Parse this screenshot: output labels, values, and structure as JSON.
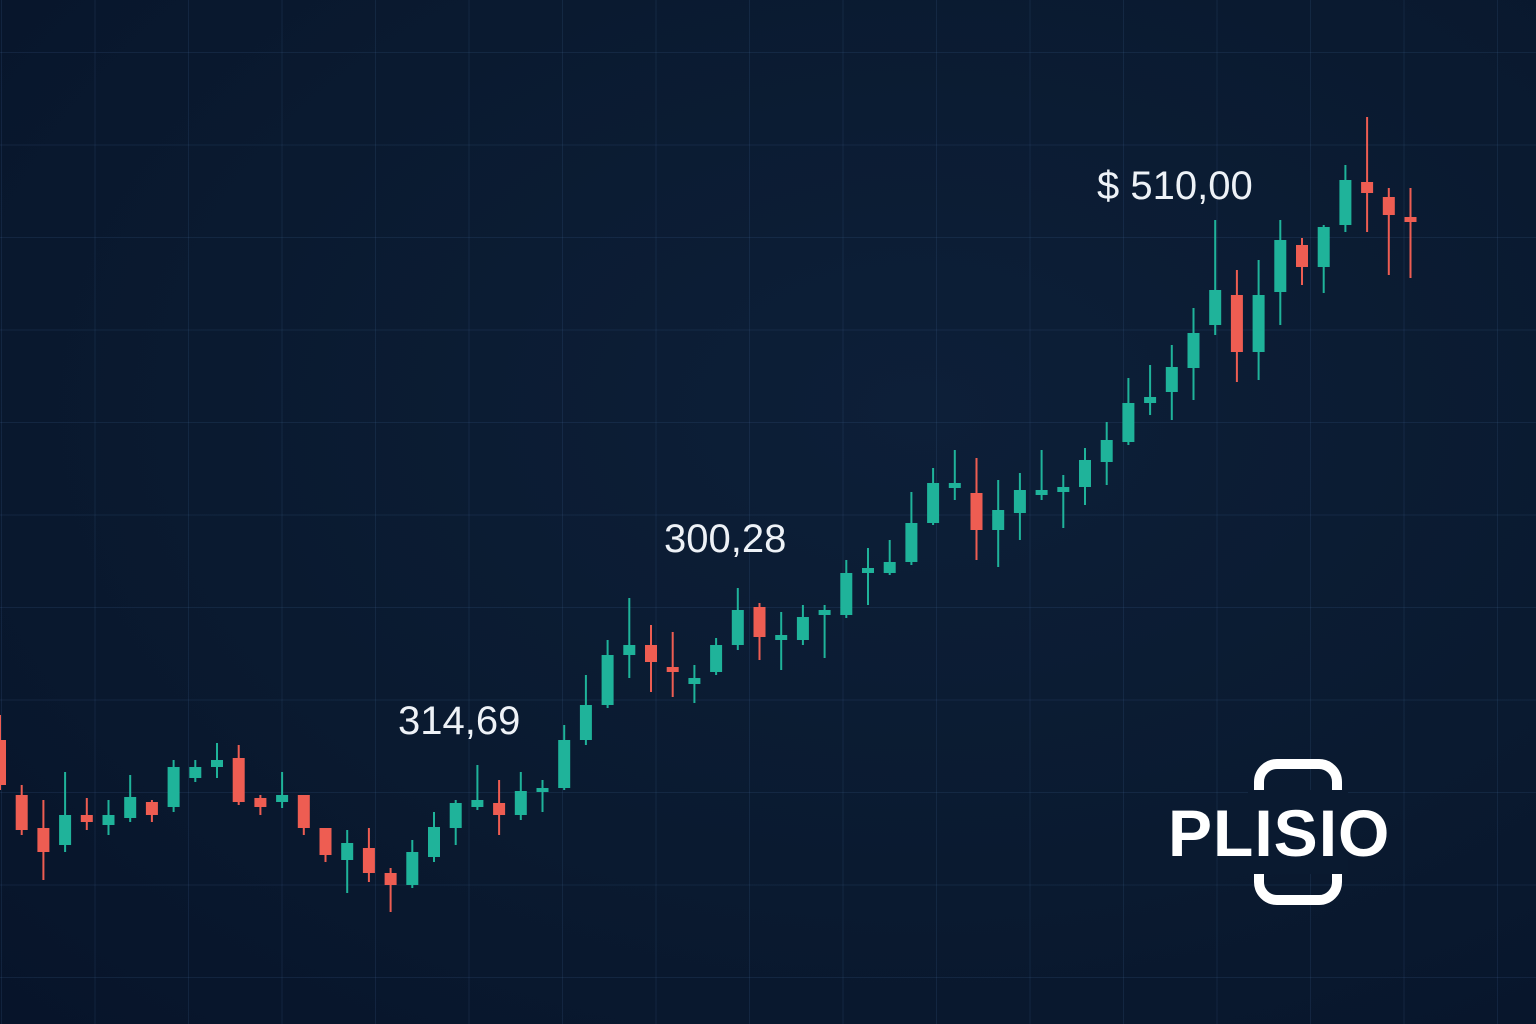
{
  "chart_data": {
    "type": "candlestick",
    "ylim": [
      100,
      612
    ],
    "up_color": "#1fb39a",
    "down_color": "#ee5d52",
    "open": [
      242,
      214.5,
      198,
      189.5,
      204.5,
      199.5,
      203,
      211,
      208.5,
      223,
      228.5,
      233,
      213,
      211,
      214.5,
      198,
      182,
      188,
      175.5,
      169.5,
      183.5,
      198,
      208.5,
      210.5,
      204.5,
      216,
      218,
      242,
      259.5,
      284.5,
      289.5,
      278.5,
      270,
      276,
      289.5,
      308.5,
      292,
      292,
      304.5,
      304.5,
      325.5,
      325.5,
      331,
      350.5,
      368,
      365.5,
      347,
      355.5,
      364.5,
      366,
      368.5,
      381,
      391,
      410.5,
      416,
      428,
      449.5,
      464.5,
      436,
      466,
      489.5,
      478.5,
      499.5,
      521,
      513.5,
      503.5
    ],
    "high": [
      254.5,
      219.5,
      212,
      226,
      213,
      212,
      224.5,
      212,
      232,
      232,
      240.5,
      239.5,
      214.5,
      226,
      214.5,
      198,
      197,
      198,
      178,
      192,
      206,
      212,
      229.5,
      222,
      226,
      222,
      249.5,
      274.5,
      292,
      313,
      299.5,
      296,
      279.5,
      293,
      318,
      310.5,
      306,
      309.5,
      309.5,
      332,
      338,
      342,
      366,
      378,
      387,
      383,
      372,
      375.5,
      387,
      374.5,
      388,
      401,
      423,
      429.5,
      439.5,
      458,
      502,
      477,
      482,
      502,
      493,
      499.5,
      529.5,
      553.5,
      518,
      518
    ],
    "low": [
      217,
      194.5,
      172,
      186,
      197,
      194.5,
      201,
      201,
      206,
      221,
      223,
      209.5,
      204.5,
      208,
      194.5,
      181,
      165.5,
      171,
      156,
      168,
      181,
      189.5,
      207,
      194.5,
      202,
      206,
      217,
      239.5,
      258,
      273,
      266,
      263.5,
      260.5,
      274.5,
      287,
      282,
      277,
      289.5,
      283,
      303,
      309.5,
      324.5,
      329.5,
      349.5,
      362,
      332,
      328.5,
      342,
      362,
      348,
      359.5,
      369.5,
      389.5,
      404.5,
      402,
      412,
      444.5,
      421,
      422,
      449.5,
      469.5,
      465.5,
      496,
      496,
      474.5,
      473
    ],
    "close": [
      219.5,
      197,
      186,
      204.5,
      201,
      204.5,
      213.5,
      204.5,
      228.5,
      228.5,
      232,
      211,
      208.5,
      214.5,
      198,
      184.5,
      190.5,
      175.5,
      169.5,
      186,
      198.5,
      210.5,
      212,
      204.5,
      216.5,
      218,
      242,
      259.5,
      284.5,
      289.5,
      281,
      276,
      273,
      289.5,
      307,
      293.5,
      294.5,
      303.5,
      307,
      325.5,
      328,
      331,
      350.5,
      370.5,
      370.5,
      347,
      357,
      367,
      367,
      368.5,
      382,
      392,
      410.5,
      413.5,
      428.5,
      445.5,
      467,
      436,
      464.5,
      492,
      478.5,
      498.5,
      522,
      515.5,
      504.5,
      501
    ],
    "annotations": [
      "314,69",
      "300,28",
      "$ 510,00"
    ]
  },
  "logo": "PLISIO"
}
